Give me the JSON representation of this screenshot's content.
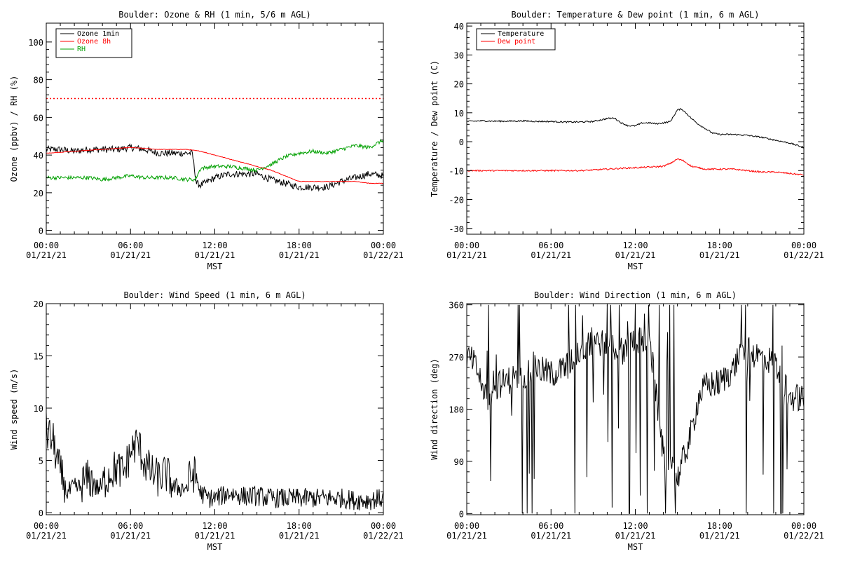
{
  "chart_data": [
    {
      "type": "line",
      "title": "Boulder: Ozone & RH (1 min, 5/6 m AGL)",
      "xlabel": "MST",
      "ylabel": "Ozone (ppbv) / RH (%)",
      "xlim": [
        0,
        24
      ],
      "ylim": [
        -2,
        110
      ],
      "yticks": [
        0,
        20,
        40,
        60,
        80,
        100
      ],
      "xticks": [
        {
          "top": "00:00",
          "bottom": "01/21/21"
        },
        {
          "top": "06:00",
          "bottom": "01/21/21"
        },
        {
          "top": "12:00",
          "bottom": "01/21/21"
        },
        {
          "top": "18:00",
          "bottom": "01/21/21"
        },
        {
          "top": "00:00",
          "bottom": "01/22/21"
        }
      ],
      "legend_position": "top-left",
      "reference_line": {
        "y": 70,
        "color": "#ff0000",
        "style": "dotted"
      },
      "series": [
        {
          "name": "Ozone 1min",
          "color": "#000000",
          "x": [
            0,
            1,
            2,
            3,
            4,
            5,
            6,
            7,
            8,
            9,
            10,
            10.4,
            10.7,
            11,
            12,
            13,
            14,
            15,
            16,
            17,
            18,
            19,
            20,
            21,
            22,
            23,
            24
          ],
          "y": [
            43,
            43,
            42,
            43,
            43,
            43,
            44,
            43,
            41,
            41,
            41,
            41,
            25,
            24,
            28,
            30,
            30,
            30,
            27,
            25,
            23,
            23,
            23,
            26,
            28,
            30,
            29
          ]
        },
        {
          "name": "Ozone 8h",
          "color": "#ff0000",
          "x": [
            0,
            2,
            4,
            6,
            8,
            10,
            11,
            12,
            13,
            14,
            15,
            16,
            17,
            18,
            19,
            20,
            21,
            22,
            23,
            24
          ],
          "y": [
            41,
            42,
            43,
            44,
            43,
            43,
            42,
            40,
            38,
            36,
            34,
            32,
            29,
            26,
            26,
            26,
            26,
            26,
            25,
            25
          ]
        },
        {
          "name": "RH",
          "color": "#00a000",
          "x": [
            0,
            1,
            2,
            3,
            4,
            5,
            6,
            7,
            8,
            9,
            10,
            10.6,
            11,
            12,
            13,
            14,
            15,
            16,
            17,
            18,
            19,
            20,
            21,
            22,
            23,
            24
          ],
          "y": [
            28,
            28,
            28,
            28,
            27,
            28,
            29,
            28,
            28,
            28,
            27,
            27,
            33,
            34,
            34,
            33,
            32,
            35,
            39,
            41,
            42,
            41,
            43,
            45,
            44,
            48
          ]
        }
      ]
    },
    {
      "type": "line",
      "title": "Boulder: Temperature & Dew point (1 min, 6 m AGL)",
      "xlabel": "MST",
      "ylabel": "Temperature / Dew point (C)",
      "xlim": [
        0,
        24
      ],
      "ylim": [
        -32,
        41
      ],
      "yticks": [
        -30,
        -20,
        -10,
        0,
        10,
        20,
        30,
        40
      ],
      "xticks": [
        {
          "top": "00:00",
          "bottom": "01/21/21"
        },
        {
          "top": "06:00",
          "bottom": "01/21/21"
        },
        {
          "top": "12:00",
          "bottom": "01/21/21"
        },
        {
          "top": "18:00",
          "bottom": "01/21/21"
        },
        {
          "top": "00:00",
          "bottom": "01/22/21"
        }
      ],
      "legend_position": "top-left",
      "series": [
        {
          "name": "Temperature",
          "color": "#000000",
          "x": [
            0,
            1,
            2,
            3,
            4,
            5,
            6,
            7,
            8,
            9,
            10,
            10.5,
            11,
            11.5,
            12,
            12.5,
            13,
            13.5,
            14,
            14.5,
            15,
            15.3,
            15.6,
            16,
            16.5,
            17,
            17.5,
            18,
            19,
            20,
            21,
            22,
            23,
            24
          ],
          "y": [
            7,
            7.2,
            7.1,
            7.1,
            7.2,
            7,
            7,
            6.8,
            6.8,
            7,
            8,
            8.2,
            6.5,
            5.5,
            5.5,
            6.5,
            6.5,
            6.2,
            6.5,
            7,
            11,
            11.3,
            10,
            8,
            6,
            4.5,
            3,
            2.5,
            2.5,
            2.2,
            1.5,
            0.5,
            -0.5,
            -2
          ]
        },
        {
          "name": "Dew point",
          "color": "#ff0000",
          "x": [
            0,
            2,
            4,
            6,
            8,
            9,
            10,
            11,
            12,
            13,
            14,
            14.5,
            15,
            15.4,
            16,
            17,
            18,
            19,
            20,
            21,
            22,
            23,
            24
          ],
          "y": [
            -10,
            -10,
            -10,
            -10,
            -10,
            -9.8,
            -9.5,
            -9.2,
            -9,
            -8.8,
            -8.5,
            -7.5,
            -6,
            -6.5,
            -8.5,
            -9.5,
            -9.5,
            -9.5,
            -10,
            -10.5,
            -10.5,
            -11,
            -11.5
          ]
        }
      ]
    },
    {
      "type": "line",
      "title": "Boulder: Wind Speed (1 min, 6 m AGL)",
      "xlabel": "MST",
      "ylabel": "Wind speed (m/s)",
      "xlim": [
        0,
        24
      ],
      "ylim": [
        -0.2,
        20
      ],
      "yticks": [
        0,
        5,
        10,
        15,
        20
      ],
      "xticks": [
        {
          "top": "00:00",
          "bottom": "01/21/21"
        },
        {
          "top": "06:00",
          "bottom": "01/21/21"
        },
        {
          "top": "12:00",
          "bottom": "01/21/21"
        },
        {
          "top": "18:00",
          "bottom": "01/21/21"
        },
        {
          "top": "00:00",
          "bottom": "01/22/21"
        }
      ],
      "series": [
        {
          "name": "",
          "color": "#000000",
          "x": [
            0,
            0.5,
            1,
            1.5,
            2,
            2.5,
            3,
            3.5,
            4,
            4.5,
            5,
            5.5,
            6,
            6.5,
            7,
            7.5,
            8,
            8.5,
            9,
            9.5,
            10,
            10.5,
            11,
            11.5,
            12,
            12.5,
            13,
            14,
            15,
            16,
            17,
            18,
            19,
            20,
            21,
            22,
            23,
            24
          ],
          "y": [
            7,
            6,
            3,
            1.5,
            2,
            2,
            2.5,
            2,
            2,
            3,
            3.5,
            3,
            5,
            6,
            4,
            3,
            2.5,
            3,
            2,
            2,
            2,
            3,
            1.5,
            1,
            1,
            1.2,
            1.5,
            1.2,
            1.2,
            1,
            1,
            1,
            1,
            1,
            1,
            0.8,
            0.8,
            1
          ]
        }
      ]
    },
    {
      "type": "line",
      "title": "Boulder: Wind Direction (1 min, 6 m AGL)",
      "xlabel": "MST",
      "ylabel": "Wind direction (deg)",
      "xlim": [
        0,
        24
      ],
      "ylim": [
        -2,
        362
      ],
      "yticks": [
        0,
        90,
        180,
        270,
        360
      ],
      "xticks": [
        {
          "top": "00:00",
          "bottom": "01/21/21"
        },
        {
          "top": "06:00",
          "bottom": "01/21/21"
        },
        {
          "top": "12:00",
          "bottom": "01/21/21"
        },
        {
          "top": "18:00",
          "bottom": "01/21/21"
        },
        {
          "top": "00:00",
          "bottom": "01/22/21"
        }
      ],
      "series": [
        {
          "name": "",
          "color": "#000000",
          "x": [
            0,
            0.5,
            1,
            1.5,
            2,
            3,
            4,
            5,
            6,
            7,
            8,
            9,
            10,
            11,
            12,
            13,
            14,
            15,
            16,
            16.5,
            17,
            18,
            19,
            19.5,
            20,
            21,
            22,
            23,
            24
          ],
          "y": [
            270,
            260,
            230,
            200,
            220,
            230,
            240,
            250,
            240,
            250,
            280,
            300,
            290,
            280,
            300,
            300,
            100,
            60,
            140,
            200,
            220,
            225,
            250,
            280,
            280,
            270,
            260,
            200,
            200
          ]
        }
      ]
    }
  ]
}
